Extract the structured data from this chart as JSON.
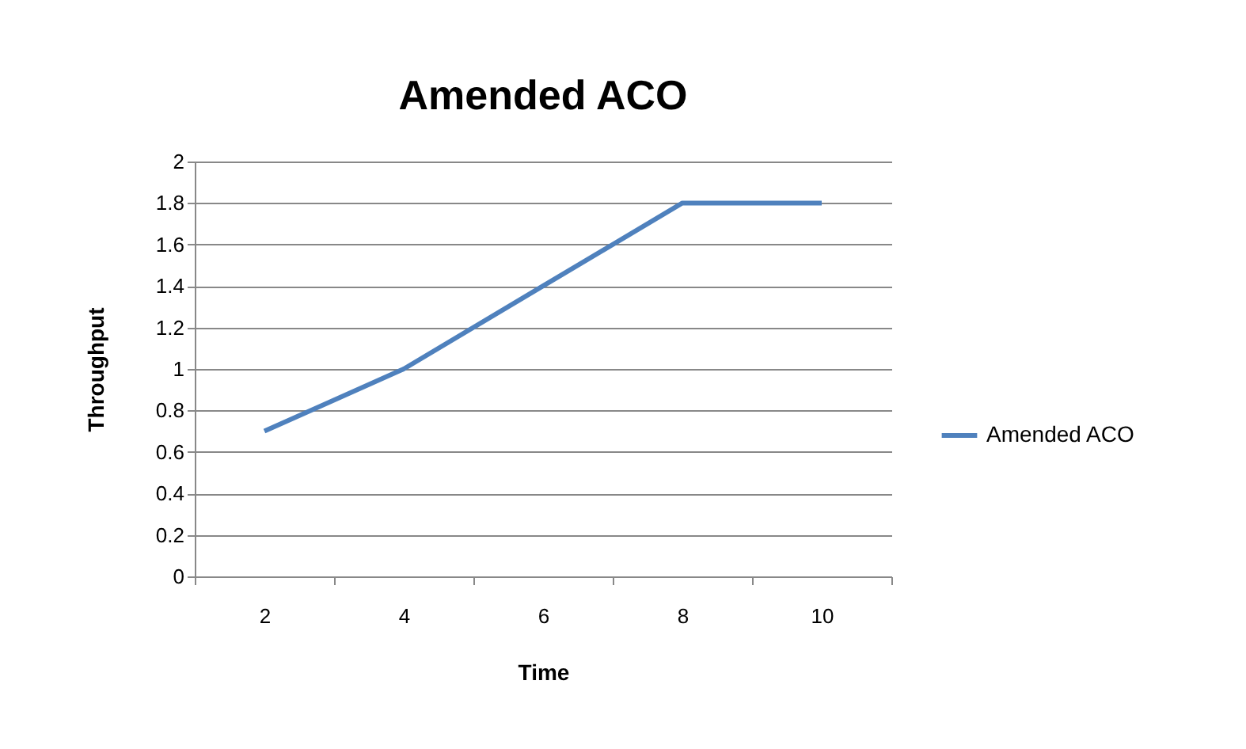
{
  "chart_data": {
    "type": "line",
    "title": "Amended ACO",
    "xlabel": "Time",
    "ylabel": "Throughput",
    "categories": [
      "2",
      "4",
      "6",
      "8",
      "10"
    ],
    "series": [
      {
        "name": "Amended ACO",
        "color": "#4f81bd",
        "values": [
          0.7,
          1.0,
          1.4,
          1.8,
          1.8
        ]
      }
    ],
    "ylim": [
      0,
      2
    ],
    "yticks": [
      0,
      0.2,
      0.4,
      0.6,
      0.8,
      1,
      1.2,
      1.4,
      1.6,
      1.8,
      2
    ],
    "grid": "y",
    "legend": "right"
  }
}
